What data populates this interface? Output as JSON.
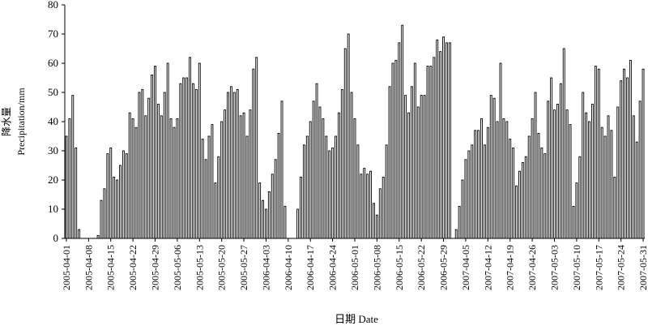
{
  "chart_data": {
    "type": "bar",
    "ylabel": [
      "降水量",
      "Precipitation/mm"
    ],
    "xlabel": "日期 Date",
    "color": "#000000",
    "ylim": [
      0,
      80
    ],
    "yticks": [
      0,
      10,
      20,
      30,
      40,
      50,
      60,
      70,
      80
    ],
    "categories": [
      "2005-04-01",
      null,
      null,
      null,
      null,
      null,
      null,
      "2005-04-08",
      null,
      null,
      null,
      null,
      null,
      null,
      "2005-04-15",
      null,
      null,
      null,
      null,
      null,
      null,
      "2005-04-22",
      null,
      null,
      null,
      null,
      null,
      null,
      "2005-04-29",
      null,
      null,
      null,
      null,
      null,
      null,
      "2005-05-06",
      null,
      null,
      null,
      null,
      null,
      null,
      "2005-05-13",
      null,
      null,
      null,
      null,
      null,
      null,
      "2005-05-20",
      null,
      null,
      null,
      null,
      null,
      null,
      "2005-05-27",
      null,
      null,
      null,
      null,
      null,
      null,
      "2006-04-03",
      null,
      null,
      null,
      null,
      null,
      null,
      "2006-04-10",
      null,
      null,
      null,
      null,
      null,
      null,
      "2006-04-17",
      null,
      null,
      null,
      null,
      null,
      null,
      "2006-04-24",
      null,
      null,
      null,
      null,
      null,
      null,
      "2006-05-01",
      null,
      null,
      null,
      null,
      null,
      null,
      "2006-05-08",
      null,
      null,
      null,
      null,
      null,
      null,
      "2006-05-15",
      null,
      null,
      null,
      null,
      null,
      null,
      "2006-05-22",
      null,
      null,
      null,
      null,
      null,
      null,
      "2006-05-29",
      null,
      null,
      null,
      null,
      null,
      null,
      "2007-04-05",
      null,
      null,
      null,
      null,
      null,
      null,
      "2007-04-12",
      null,
      null,
      null,
      null,
      null,
      null,
      "2007-04-19",
      null,
      null,
      null,
      null,
      null,
      null,
      "2007-04-26",
      null,
      null,
      null,
      null,
      null,
      null,
      "2007-05-03",
      null,
      null,
      null,
      null,
      null,
      null,
      "2007-05-10",
      null,
      null,
      null,
      null,
      null,
      null,
      "2007-05-17",
      null,
      null,
      null,
      null,
      null,
      null,
      "2007-05-24",
      null,
      null,
      null,
      null,
      null,
      null,
      "2007-05-31"
    ],
    "values": [
      35,
      41,
      49,
      31,
      3,
      0,
      0,
      0,
      0,
      0,
      1,
      13,
      17,
      29,
      31,
      21,
      20,
      25,
      30,
      29,
      43,
      41,
      38,
      50,
      51,
      42,
      48,
      56,
      59,
      46,
      42,
      50,
      60,
      41,
      38,
      41,
      53,
      55,
      55,
      62,
      53,
      51,
      60,
      34,
      27,
      35,
      39,
      19,
      28,
      40,
      44,
      50,
      52,
      50,
      51,
      42,
      43,
      35,
      44,
      58,
      62,
      19,
      13,
      10,
      16,
      22,
      27,
      36,
      47,
      11,
      0,
      0,
      0,
      10,
      21,
      32,
      35,
      40,
      47,
      53,
      45,
      41,
      35,
      30,
      31,
      35,
      43,
      51,
      65,
      70,
      50,
      41,
      32,
      22,
      24,
      22,
      23,
      12,
      8,
      17,
      21,
      32,
      52,
      60,
      61,
      67,
      73,
      49,
      43,
      52,
      60,
      45,
      49,
      49,
      59,
      59,
      62,
      68,
      64,
      69,
      67,
      67,
      0,
      3,
      11,
      20,
      27,
      30,
      32,
      37,
      37,
      41,
      32,
      38,
      49,
      48,
      40,
      60,
      41,
      40,
      34,
      31,
      18,
      23,
      26,
      28,
      35,
      41,
      50,
      36,
      31,
      29,
      47,
      55,
      44,
      46,
      53,
      65,
      44,
      39,
      11,
      19,
      28,
      50,
      43,
      40,
      46,
      59,
      58,
      38,
      35,
      42,
      37,
      21,
      45,
      54,
      58,
      55,
      61,
      42,
      33,
      47,
      58
    ]
  }
}
